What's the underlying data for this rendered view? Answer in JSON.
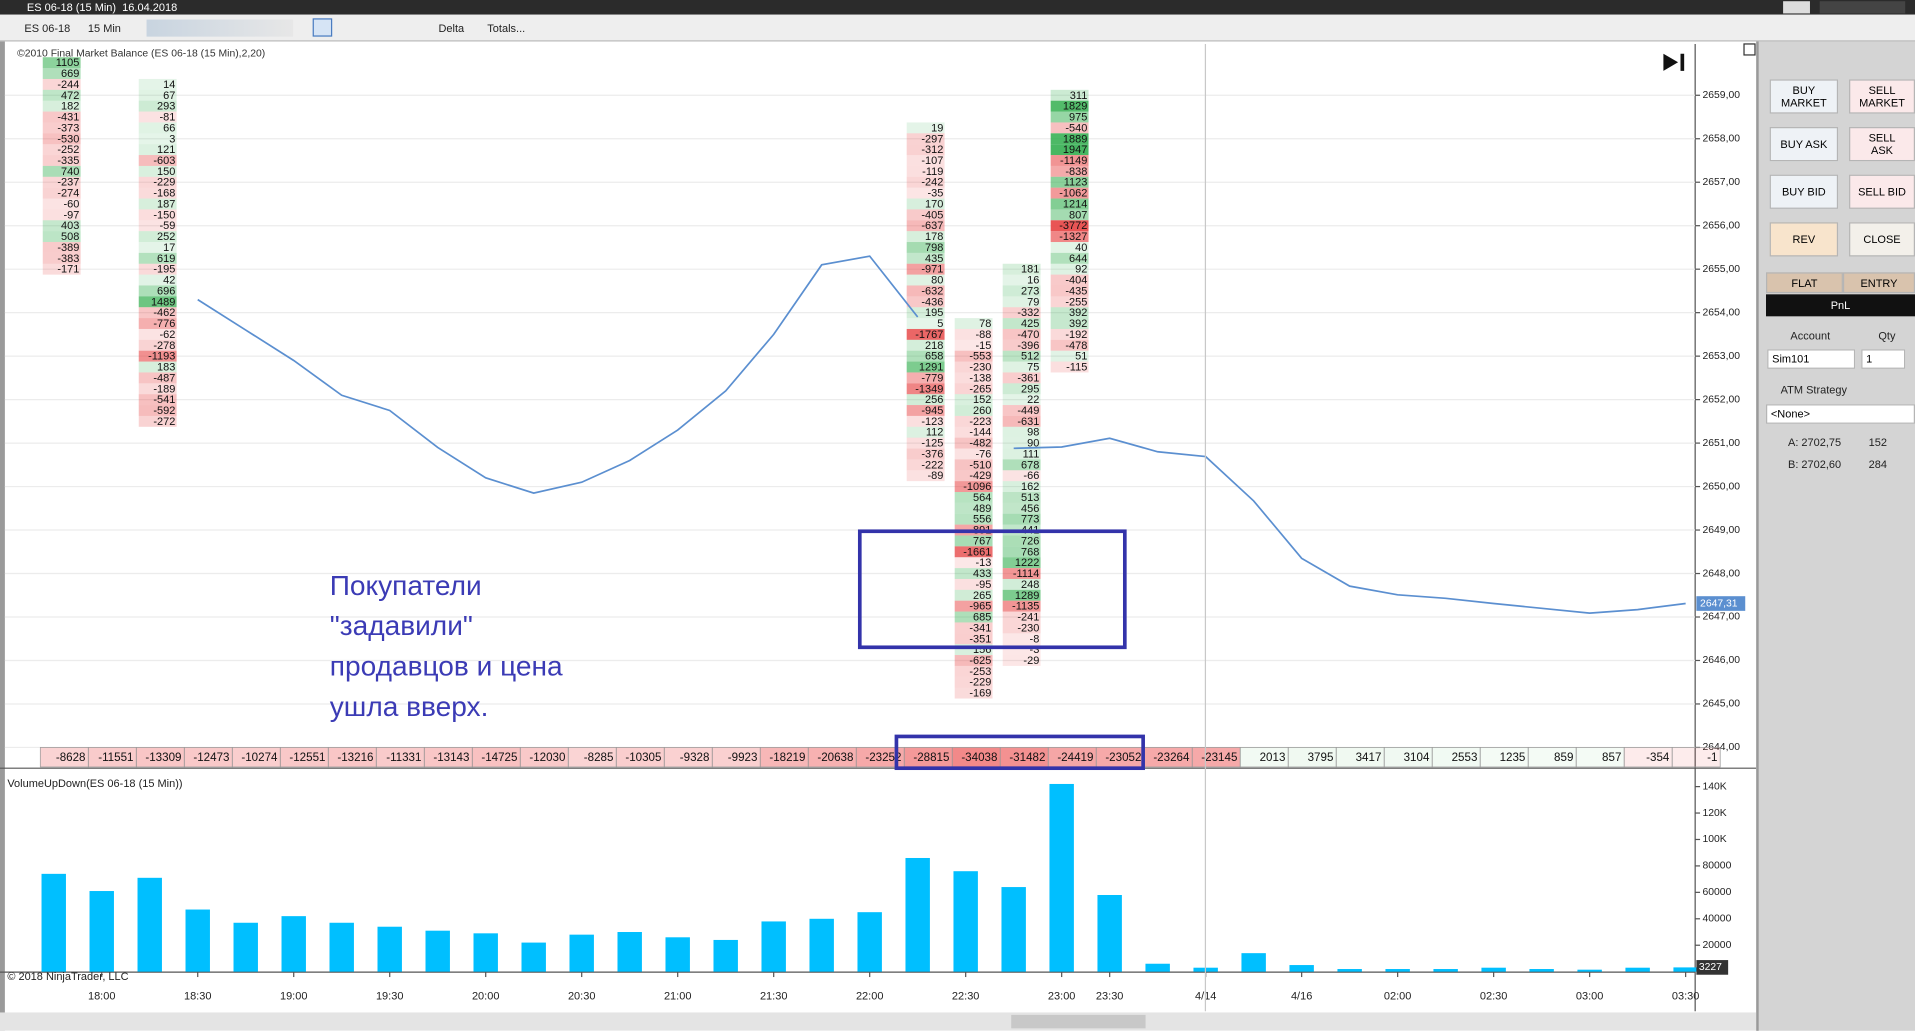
{
  "window": {
    "title": "ES 06-18 (15 Min)  16.04.2018"
  },
  "toolbar": {
    "instrument": "ES 06-18",
    "interval": "15 Min",
    "mode": "Delta",
    "totals": "Totals..."
  },
  "chart_data": [
    {
      "type": "footprint",
      "label": "©2010 Final Market Balance  (ES 06-18 (15 Min),2,20)",
      "ylim": [
        2644,
        2660.18
      ],
      "yticks": [
        {
          "value": 2644,
          "label": "2644,00"
        },
        {
          "value": 2645,
          "label": "2645,00"
        },
        {
          "value": 2646,
          "label": "2646,00"
        },
        {
          "value": 2647,
          "label": "2647,00"
        },
        {
          "value": 2648,
          "label": "2648,00"
        },
        {
          "value": 2649,
          "label": "2649,00"
        },
        {
          "value": 2650,
          "label": "2650,00"
        },
        {
          "value": 2651,
          "label": "2651,00"
        },
        {
          "value": 2652,
          "label": "2652,00"
        },
        {
          "value": 2653,
          "label": "2653,00"
        },
        {
          "value": 2654,
          "label": "2654,00"
        },
        {
          "value": 2655,
          "label": "2655,00"
        },
        {
          "value": 2656,
          "label": "2656,00"
        },
        {
          "value": 2657,
          "label": "2657,00"
        },
        {
          "value": 2658,
          "label": "2658,00"
        },
        {
          "value": 2659,
          "label": "2659,00"
        }
      ],
      "grid": true,
      "delta": [
        -8628,
        -11551,
        -13309,
        -12473,
        -10274,
        -12551,
        -13216,
        -11331,
        -13143,
        -14725,
        -12030,
        -8285,
        -10305,
        -9328,
        -9923,
        -18219,
        -20638,
        -23252,
        -28815,
        -34038,
        -31482,
        -24419,
        -23052,
        -23264,
        -23145,
        2013,
        3795,
        3417,
        3104,
        2553,
        1235,
        859,
        857,
        -354,
        -1
      ],
      "line": {
        "color": "#5b8fd0",
        "values": [
          null,
          null,
          null,
          2654.3,
          2653.6,
          2652.9,
          2652.1,
          2651.75,
          2650.9,
          2650.2,
          2649.85,
          2650.1,
          2650.6,
          2651.3,
          2652.2,
          2653.5,
          2655.1,
          2655.3,
          2653.9,
          null,
          2650.88,
          2650.91,
          2651.11,
          2650.8,
          2650.69,
          2649.67,
          2648.35,
          2647.71,
          2647.51,
          2647.43,
          2647.31,
          2647.2,
          2647.09,
          2647.17,
          2647.31
        ]
      },
      "last_price": {
        "value": 2647.31,
        "label": "2647,31"
      },
      "cells": [
        {
          "top": 2659.75,
          "values": [
            1105,
            669,
            -244,
            472,
            182,
            -431,
            -373,
            -530,
            -252,
            -335,
            740,
            -237,
            -274,
            -60,
            -97,
            403,
            508,
            -389,
            -383,
            -171
          ]
        },
        null,
        {
          "top": 2659.25,
          "values": [
            14,
            67,
            293,
            -81,
            66,
            3,
            121,
            -603,
            150,
            -229,
            -168,
            187,
            -150,
            -59,
            252,
            17,
            619,
            -195,
            42,
            696,
            1489,
            -462,
            -776,
            -62,
            -278,
            -1193,
            183,
            -487,
            -189,
            -541,
            -592,
            -272
          ]
        },
        null,
        null,
        null,
        null,
        null,
        null,
        null,
        null,
        null,
        null,
        null,
        null,
        null,
        null,
        null,
        {
          "top": 2658.25,
          "values": [
            19,
            -297,
            -312,
            -107,
            -119,
            -242,
            -35,
            170,
            -405,
            -637,
            178,
            798,
            435,
            -971,
            80,
            -632,
            -436,
            195,
            5,
            -1767,
            218,
            658,
            1291,
            -779,
            -1349,
            256,
            -945,
            -123,
            112,
            -125,
            -376,
            -222,
            -89
          ]
        },
        {
          "top": 2653.75,
          "values": [
            78,
            -88,
            -15,
            -553,
            -230,
            -138,
            -265,
            152,
            260,
            -223,
            -144,
            -482,
            -76,
            -510,
            -429,
            -1096,
            564,
            489,
            556,
            -891,
            767,
            -1661,
            -13,
            433,
            -95,
            265,
            -965,
            685,
            -341,
            -351,
            156,
            -625,
            -253,
            -229,
            -169
          ]
        },
        {
          "top": 2655.0,
          "values": [
            181,
            16,
            273,
            79,
            -332,
            425,
            -470,
            -396,
            512,
            75,
            -361,
            295,
            22,
            -449,
            -631,
            98,
            90,
            111,
            678,
            -66,
            162,
            513,
            456,
            773,
            441,
            726,
            768,
            1222,
            -1114,
            248,
            1289,
            -1135,
            -241,
            -230,
            -8,
            -3,
            -29
          ]
        },
        {
          "top": 2659.0,
          "values": [
            311,
            1829,
            975,
            -540,
            1889,
            1947,
            -1149,
            -838,
            1123,
            -1062,
            1214,
            807,
            -3772,
            -1327,
            40,
            644,
            92,
            -404,
            -435,
            -255,
            392,
            392,
            -192,
            -478,
            51,
            -115
          ]
        },
        null,
        null,
        null,
        null,
        null,
        null,
        null,
        null,
        null,
        null,
        null,
        null,
        null
      ]
    },
    {
      "type": "bar",
      "title": "VolumeUpDown(ES 06-18 (15 Min))",
      "footer": "© 2018 NinjaTrader, LLC",
      "color": "#00bfff",
      "categories": [
        null,
        "18:00",
        null,
        "18:30",
        null,
        "19:00",
        null,
        "19:30",
        null,
        "20:00",
        null,
        "20:30",
        null,
        "21:00",
        null,
        "21:30",
        null,
        "22:00",
        null,
        "22:30",
        null,
        "23:00",
        "23:30",
        null,
        "4/14",
        null,
        "4/16",
        null,
        "02:00",
        null,
        "02:30",
        null,
        "03:00",
        null,
        "03:30"
      ],
      "values": [
        74000,
        61000,
        71000,
        47000,
        37000,
        42000,
        37000,
        34000,
        31000,
        29000,
        22000,
        28000,
        30000,
        26000,
        24000,
        38000,
        40000,
        45000,
        86000,
        76000,
        64000,
        142000,
        58000,
        6000,
        3000,
        14000,
        5000,
        2000,
        2000,
        2000,
        3000,
        2000,
        1500,
        3000,
        3227
      ],
      "ylim": [
        0,
        153000
      ],
      "yticks": [
        20000,
        40000,
        60000,
        80000,
        {
          "value": 100000,
          "label": "100K"
        },
        {
          "value": 120000,
          "label": "120K"
        },
        {
          "value": 140000,
          "label": "140K"
        }
      ]
    }
  ],
  "annotation": [
    "Покупатели",
    "\"задавили\"",
    "продавцов и цена",
    "ушла вверх."
  ],
  "order_panel": {
    "buttons": [
      [
        "BUY MARKET",
        "SELL MARKET"
      ],
      [
        "BUY ASK",
        "SELL ASK"
      ],
      [
        "BUY BID",
        "SELL BID"
      ],
      [
        "REV",
        "CLOSE"
      ]
    ],
    "tabs": [
      "FLAT",
      "ENTRY"
    ],
    "pnl": "PnL",
    "account_label": "Account",
    "qty_label": "Qty",
    "account": "Sim101",
    "qty": "1",
    "atm_label": "ATM Strategy",
    "atm": "<None>",
    "quotes": [
      [
        "A: 2702,75",
        "152"
      ],
      [
        "B: 2702,60",
        "284"
      ]
    ]
  }
}
